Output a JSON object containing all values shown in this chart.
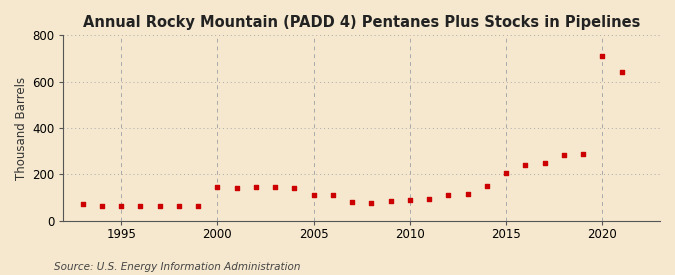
{
  "title": "Annual Rocky Mountain (PADD 4) Pentanes Plus Stocks in Pipelines",
  "ylabel": "Thousand Barrels",
  "source": "Source: U.S. Energy Information Administration",
  "background_color": "#f5e8ce",
  "plot_bg_color": "#f5e8ce",
  "marker_color": "#cc0000",
  "grid_color": "#aaaaaa",
  "spine_color": "#555555",
  "years": [
    1993,
    1994,
    1995,
    1996,
    1997,
    1998,
    1999,
    2000,
    2001,
    2002,
    2003,
    2004,
    2005,
    2006,
    2007,
    2008,
    2009,
    2010,
    2011,
    2012,
    2013,
    2014,
    2015,
    2016,
    2017,
    2018,
    2019,
    2020,
    2021
  ],
  "values": [
    72,
    65,
    63,
    63,
    63,
    62,
    62,
    145,
    140,
    145,
    145,
    140,
    110,
    110,
    80,
    75,
    85,
    90,
    95,
    110,
    115,
    150,
    205,
    240,
    250,
    285,
    290,
    710,
    640
  ],
  "xlim": [
    1992,
    2023
  ],
  "ylim": [
    0,
    800
  ],
  "yticks": [
    0,
    200,
    400,
    600,
    800
  ],
  "xticks": [
    1995,
    2000,
    2005,
    2010,
    2015,
    2020
  ],
  "title_fontsize": 10.5,
  "label_fontsize": 8.5,
  "tick_fontsize": 8.5,
  "source_fontsize": 7.5
}
